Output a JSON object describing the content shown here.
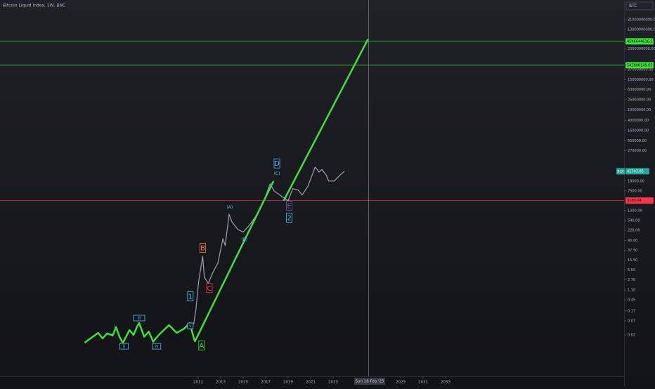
{
  "chart_data": {
    "type": "line",
    "title": "Bitcoin Liquid Index, 1W, BNC",
    "symbol_box": "BTC",
    "log_scale": true,
    "grid": false,
    "xlim": [
      1993.375,
      2048.875
    ],
    "ylim": [
      0.0005,
      180000000000
    ],
    "xticks": [
      2011,
      2013,
      2015,
      2017,
      2019,
      2021,
      2023,
      2029,
      2031,
      2033
    ],
    "yticks": [
      {
        "value": 31000000000,
        "label": "31000000000.00"
      },
      {
        "value": 13000000000,
        "label": "13000000000.00"
      },
      {
        "value": 2300000000,
        "label": "2300000000.00"
      },
      {
        "value": 370000000,
        "label": "370000000.00"
      },
      {
        "value": 150000000,
        "label": "150000000.00"
      },
      {
        "value": 63000000,
        "label": "63000000.00"
      },
      {
        "value": 25000000,
        "label": "25000000.00"
      },
      {
        "value": 10000000,
        "label": "10000000.00"
      },
      {
        "value": 4000000,
        "label": "4000000.00"
      },
      {
        "value": 1600000,
        "label": "1600000.00"
      },
      {
        "value": 650000,
        "label": "650000.00"
      },
      {
        "value": 270000,
        "label": "270000.00"
      },
      {
        "value": 18000,
        "label": "18000.00"
      },
      {
        "value": 7500,
        "label": "7500.00"
      },
      {
        "value": 1300,
        "label": "1300.00"
      },
      {
        "value": 540,
        "label": "540.00"
      },
      {
        "value": 220,
        "label": "220.00"
      },
      {
        "value": 90,
        "label": "90.00"
      },
      {
        "value": 37.5,
        "label": "37.50"
      },
      {
        "value": 15.5,
        "label": "15.50"
      },
      {
        "value": 6.5,
        "label": "6.50"
      },
      {
        "value": 2.7,
        "label": "2.70"
      },
      {
        "value": 1.1,
        "label": "1.10"
      },
      {
        "value": 0.45,
        "label": "0.45"
      },
      {
        "value": 0.17,
        "label": "0.17"
      },
      {
        "value": 0.07,
        "label": "0.07"
      },
      {
        "value": 0.02,
        "label": "0.02"
      }
    ],
    "series": [
      {
        "color": "#9aa3ad",
        "width": 1.2,
        "x": [
          2010.6,
          2010.8,
          2011.05,
          2011.4,
          2011.55,
          2011.9,
          2012.3,
          2012.75,
          2013.2,
          2013.4,
          2013.75,
          2014.0,
          2014.55,
          2015.0,
          2015.6,
          2016.25,
          2016.75,
          2017.4,
          2017.75,
          2018.25,
          2019.0,
          2019.4,
          2019.9,
          2020.25,
          2020.75,
          2021.4,
          2021.75,
          2022.0,
          2022.4,
          2022.6,
          2023.1,
          2023.6,
          2024.0
        ],
        "values": [
          0.051,
          0.2,
          2.5,
          22,
          3.4,
          2.0,
          5.2,
          12,
          105,
          57,
          940,
          470,
          235,
          190,
          370,
          940,
          2400,
          14000,
          7500,
          5200,
          3100,
          9100,
          8000,
          5200,
          11000,
          62000,
          40000,
          50000,
          30000,
          18000,
          18000,
          30000,
          42743.85
        ]
      },
      {
        "color": "#3fe03a",
        "width": 2.5,
        "x": [
          2000.9,
          2001.5,
          2002.1,
          2002.5,
          2002.9,
          2003.4,
          2003.7,
          2004.0,
          2004.3,
          2004.9,
          2005.25,
          2005.6,
          2005.75,
          2006.2,
          2006.6,
          2007.0,
          2007.5,
          2008.4,
          2009.1,
          2009.75,
          2010.25,
          2010.7
        ],
        "values": [
          0.01,
          0.0156,
          0.024,
          0.0147,
          0.023,
          0.019,
          0.04,
          0.017,
          0.01,
          0.031,
          0.02,
          0.045,
          0.058,
          0.017,
          0.027,
          0.011,
          0.02,
          0.048,
          0.024,
          0.035,
          0.058,
          0.011
        ]
      },
      {
        "color": "#3fe03a",
        "width": 2.5,
        "x": [
          2010.7,
          2017.7
        ],
        "values": [
          0.011,
          18000
        ]
      },
      {
        "color": "#3fe03a",
        "width": 2.5,
        "x": [
          2018.6,
          2026.1
        ],
        "values": [
          3100,
          5500000000
        ]
      }
    ],
    "hlines": [
      {
        "value": 4546644616.57,
        "label": "4546644616.57",
        "color": "#3fe03a"
      },
      {
        "value": 542808149.03,
        "label": "542808149.03",
        "color": "#3fe03a"
      },
      {
        "value": 3160.04,
        "label": "3160.04",
        "color": "#f23645"
      }
    ],
    "last_price": {
      "symbol": "BLX",
      "value": 42743.85,
      "label": "42743.85",
      "color": "#26a69a"
    },
    "crosshair_label": "Sun 16 Feb '25",
    "annotations": [
      {
        "text": "i",
        "x": 2003.6,
        "y": 0.042,
        "color": "#4fc3f7",
        "boxed": false
      },
      {
        "text": "ii",
        "x": 2004.4,
        "y": 0.0073,
        "color": "#4fc3f7",
        "boxed": true
      },
      {
        "text": "iii",
        "x": 2005.75,
        "y": 0.09,
        "color": "#4fc3f7",
        "boxed": true
      },
      {
        "text": "iv",
        "x": 2007.3,
        "y": 0.0073,
        "color": "#4fc3f7",
        "boxed": true
      },
      {
        "text": "v",
        "x": 2010.3,
        "y": 0.045,
        "color": "#4fc3f7",
        "boxed": true
      },
      {
        "text": "1",
        "x": 2010.3,
        "y": 0.62,
        "color": "#4fc3f7",
        "boxed": true
      },
      {
        "text": "A",
        "x": 2011.3,
        "y": 0.0078,
        "color": "#3fe03a",
        "boxed": true
      },
      {
        "text": "B",
        "x": 2011.4,
        "y": 47,
        "color": "#ff7f2a",
        "boxed": true
      },
      {
        "text": "C",
        "x": 2012.0,
        "y": 1.3,
        "color": "#f23645",
        "boxed": true
      },
      {
        "text": "(A)",
        "x": 2013.8,
        "y": 1780,
        "color": "#4fc3f7",
        "boxed": false
      },
      {
        "text": "(B)",
        "x": 2015.1,
        "y": 100,
        "color": "#4fc3f7",
        "boxed": false
      },
      {
        "text": "D",
        "x": 2018.0,
        "y": 86000,
        "color": "#4fc3f7",
        "boxed": true
      },
      {
        "text": "(C)",
        "x": 2018.0,
        "y": 35600,
        "color": "#4fc3f7",
        "boxed": false
      },
      {
        "text": "E",
        "x": 2019.1,
        "y": 2000,
        "color": "#7e57c2",
        "boxed": true
      },
      {
        "text": "2",
        "x": 2019.1,
        "y": 690,
        "color": "#4fc3f7",
        "boxed": true
      }
    ]
  }
}
